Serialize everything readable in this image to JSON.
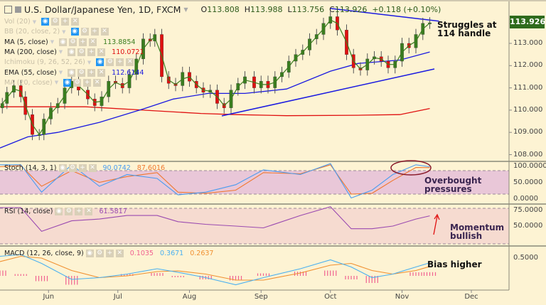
{
  "header": {
    "title": "U.S. Dollar/Japanese Yen, 1D, FXCM",
    "open_label": "O",
    "open": "113.808",
    "high_label": "H",
    "high": "113.988",
    "low_label": "L",
    "low": "113.756",
    "close_label": "C",
    "close": "113.926",
    "change": "+0.118 (+0.10%)"
  },
  "indicators": [
    {
      "label": "Vol (20)",
      "value": "",
      "visible": false
    },
    {
      "label": "BB (20, close, 2)",
      "value": "",
      "visible": false
    },
    {
      "label": "MA (5, close)",
      "value": "113.8854",
      "color": "#3a7d1f",
      "visible": true
    },
    {
      "label": "MA (200, close)",
      "value": "110.0721",
      "color": "#e01010",
      "visible": true
    },
    {
      "label": "Ichimoku (9, 26, 52, 26)",
      "value": "",
      "visible": false
    },
    {
      "label": "EMA (55, close)",
      "value": "112.6144",
      "color": "#1a1ae0",
      "visible": true
    },
    {
      "label": "MA (20, close)",
      "value": "",
      "visible": false
    }
  ],
  "oscillator_legends": {
    "stoch": {
      "label": "Stoch (14, 3, 1)",
      "k": "90.0742",
      "d": "87.6016"
    },
    "rsi": {
      "label": "RSI (14, close)",
      "value": "61.5817"
    },
    "macd": {
      "label": "MACD (12, 26, close, 9)",
      "hist": "0.1035",
      "macd": "0.3671",
      "signal": "0.2637"
    }
  },
  "price_tag": "113.926",
  "annotations": {
    "struggles": "Struggles at 114 handle",
    "overbought": "Overbought pressures",
    "momentum": "Momentum bullish",
    "bias": "Bias higher"
  },
  "colors": {
    "up": "#3a7d1f",
    "down": "#e01010",
    "ma5": "#3a7d1f",
    "ma200": "#e01010",
    "ema55": "#1a1ae0",
    "stoch_k": "#4a9cf0",
    "stoch_d": "#f07830",
    "rsi": "#9a4ab0",
    "macd": "#4ab0f0",
    "signal": "#f09030",
    "hist": "#f06090",
    "price_tag_bg": "#2e6b1d"
  },
  "chart_data": {
    "type": "candlestick",
    "price_axis": {
      "ticks": [
        "108.000",
        "109.000",
        "110.000",
        "111.000",
        "112.000",
        "113.000"
      ],
      "range": [
        107.7,
        114.9
      ]
    },
    "date_axis": {
      "ticks": [
        "Jun",
        "Jul",
        "Aug",
        "Sep",
        "Oct",
        "Nov",
        "Dec"
      ],
      "tick_dates": [
        "2018-06-01",
        "2018-07-01",
        "2018-08-01",
        "2018-09-01",
        "2018-10-01",
        "2018-11-01",
        "2018-12-01"
      ]
    },
    "close": {
      "dates": [
        "05-12",
        "05-14",
        "05-17",
        "05-20",
        "05-22",
        "05-25",
        "05-28",
        "05-30",
        "06-02",
        "06-05",
        "06-08",
        "06-11",
        "06-14",
        "06-18",
        "06-21",
        "06-24",
        "06-27",
        "06-30",
        "07-03",
        "07-06",
        "07-09",
        "07-12",
        "07-15",
        "07-17",
        "07-20",
        "07-23",
        "07-26",
        "07-29",
        "08-01",
        "08-04",
        "08-07",
        "08-10",
        "08-13",
        "08-16",
        "08-19",
        "08-22",
        "08-25",
        "08-29",
        "09-01",
        "09-04",
        "09-07",
        "09-10",
        "09-13",
        "09-16",
        "09-19",
        "09-22",
        "09-25",
        "09-28",
        "10-01",
        "10-04",
        "10-08",
        "10-11",
        "10-14",
        "10-17",
        "10-20",
        "10-23",
        "10-26",
        "10-29",
        "11-01",
        "11-04",
        "11-07",
        "11-10",
        "11-13"
      ],
      "values": [
        110.3,
        110.8,
        111.1,
        110.6,
        109.8,
        108.9,
        108.9,
        109.6,
        110.1,
        110.3,
        111.0,
        111.3,
        110.9,
        110.5,
        110.2,
        110.6,
        111.3,
        111.2,
        111.0,
        111.6,
        112.3,
        113.2,
        113.1,
        113.4,
        111.5,
        111.2,
        111.1,
        111.7,
        111.3,
        111.0,
        110.8,
        110.9,
        110.3,
        110.1,
        110.9,
        111.2,
        111.5,
        111.0,
        111.3,
        111.0,
        111.5,
        111.7,
        112.2,
        112.5,
        112.7,
        113.2,
        113.4,
        113.9,
        114.2,
        113.6,
        112.5,
        111.9,
        111.8,
        112.3,
        112.4,
        112.2,
        111.9,
        112.2,
        113.0,
        112.8,
        113.4,
        113.9,
        113.926
      ]
    },
    "ema55": {
      "dates": [
        "05-11",
        "05-23",
        "06-05",
        "06-23",
        "07-12",
        "07-25",
        "08-09",
        "08-25",
        "09-12",
        "10-01",
        "10-13",
        "10-31",
        "11-13"
      ],
      "values": [
        108.3,
        108.8,
        109.0,
        109.45,
        110.05,
        110.5,
        110.75,
        110.75,
        110.95,
        111.75,
        112.1,
        112.25,
        112.6144
      ]
    },
    "ma200": {
      "dates": [
        "05-11",
        "06-17",
        "07-12",
        "08-06",
        "08-21",
        "09-12",
        "10-13",
        "10-31",
        "11-13"
      ],
      "values": [
        110.15,
        110.15,
        110.0,
        109.85,
        109.8,
        109.75,
        109.77,
        109.8,
        110.0721
      ]
    },
    "trendlines": [
      {
        "from": [
          "08-15",
          109.74
        ],
        "to": [
          "11-15",
          111.85
        ]
      },
      {
        "from": [
          "10-01",
          114.57
        ],
        "to": [
          "11-17",
          114.0
        ]
      }
    ],
    "oscillator_dates": [
      "05-11",
      "05-20",
      "05-29",
      "06-11",
      "06-23",
      "07-05",
      "07-18",
      "07-27",
      "08-08",
      "08-21",
      "09-02",
      "09-18",
      "10-01",
      "10-10",
      "10-19",
      "10-28",
      "11-07",
      "11-13"
    ],
    "stoch": {
      "axis_ticks": [
        "100.0000",
        "50.0000",
        "0.0000"
      ],
      "bands": [
        80,
        20
      ],
      "k": [
        95,
        95,
        25,
        95,
        40,
        70,
        60,
        18,
        25,
        44,
        82,
        70,
        98,
        10,
        30,
        70,
        95,
        90.0742
      ],
      "d": [
        90,
        93,
        40,
        80,
        50,
        65,
        75,
        25,
        22,
        30,
        75,
        72,
        95,
        20,
        22,
        55,
        88,
        87.6016
      ]
    },
    "rsi": {
      "axis_ticks": [
        "75.0000",
        "50.0000"
      ],
      "bands": [
        70,
        30
      ],
      "values": [
        71,
        71,
        44,
        56,
        58,
        62,
        62,
        55,
        52,
        50,
        48,
        62,
        72,
        47,
        47,
        50,
        58,
        61.5817
      ]
    },
    "macd": {
      "axis_ticks": [
        "0.5000"
      ],
      "macd": [
        0.55,
        0.6,
        0.35,
        -0.1,
        -0.05,
        0.05,
        0.2,
        0.1,
        -0.05,
        -0.25,
        -0.05,
        0.2,
        0.45,
        0.25,
        -0.05,
        0.05,
        0.25,
        0.3671
      ],
      "signal": [
        0.4,
        0.55,
        0.5,
        0.15,
        -0.05,
        0.0,
        0.12,
        0.14,
        0.05,
        -0.12,
        -0.12,
        0.08,
        0.3,
        0.35,
        0.15,
        0.05,
        0.15,
        0.2637
      ]
    }
  }
}
